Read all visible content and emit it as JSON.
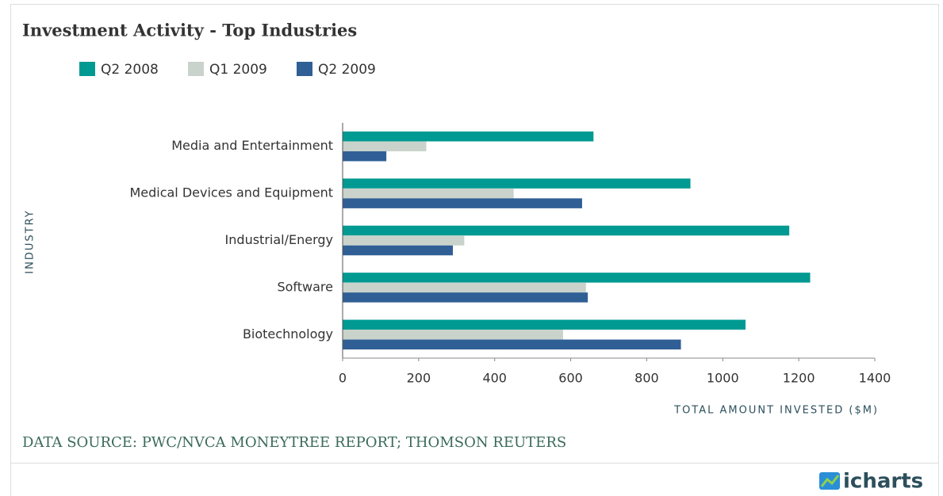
{
  "chart_data": {
    "type": "bar",
    "orientation": "horizontal",
    "title": "Investment Activity - Top Industries",
    "categories": [
      "Media and Entertainment",
      "Medical Devices and Equipment",
      "Industrial/Energy",
      "Software",
      "Biotechnology"
    ],
    "series": [
      {
        "name": "Q2 2008",
        "color": "#009a92",
        "values": [
          660,
          915,
          1175,
          1230,
          1060
        ]
      },
      {
        "name": "Q1 2009",
        "color": "#c9d3cb",
        "values": [
          220,
          450,
          320,
          640,
          580
        ]
      },
      {
        "name": "Q2 2009",
        "color": "#2f5f95",
        "values": [
          115,
          630,
          290,
          645,
          890
        ]
      }
    ],
    "xlim": [
      0,
      1400
    ],
    "xticks": [
      0,
      200,
      400,
      600,
      800,
      1000,
      1200,
      1400
    ],
    "xlabel": "TOTAL AMOUNT INVESTED ($M)",
    "ylabel": "INDUSTRY",
    "grid": false,
    "legend": "top-left",
    "source": "DATA SOURCE:  PWC/NVCA MONEYTREE REPORT; THOMSON REUTERS",
    "brand": "icharts"
  }
}
